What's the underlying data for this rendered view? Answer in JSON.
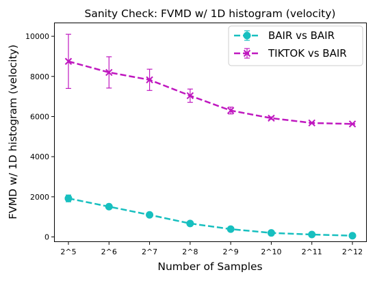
{
  "chart_data": {
    "type": "line",
    "title": "Sanity Check: FVMD w/ 1D histogram (velocity)",
    "xlabel": "Number of Samples",
    "ylabel": "FVMD w/ 1D histogram (velocity)",
    "categories": [
      "2^5",
      "2^6",
      "2^7",
      "2^8",
      "2^9",
      "2^10",
      "2^11",
      "2^12"
    ],
    "y_ticks": [
      "0",
      "2000",
      "4000",
      "6000",
      "8000",
      "10000"
    ],
    "ylim": [
      -220,
      10650
    ],
    "grid": false,
    "legend_position": "top-right",
    "series": [
      {
        "name": "BAIR vs BAIR",
        "color": "#17bfbf",
        "marker": "circle",
        "line_style": "dashed",
        "values": [
          1920,
          1510,
          1100,
          670,
          390,
          200,
          120,
          60
        ],
        "error": [
          170,
          60,
          60,
          40,
          30,
          20,
          15,
          10
        ]
      },
      {
        "name": "TIKTOK vs BAIR",
        "color": "#bf17bf",
        "marker": "x",
        "line_style": "dashed",
        "values": [
          8750,
          8200,
          7830,
          7040,
          6300,
          5920,
          5680,
          5630
        ],
        "error": [
          1350,
          780,
          530,
          330,
          170,
          60,
          30,
          20
        ]
      }
    ]
  }
}
